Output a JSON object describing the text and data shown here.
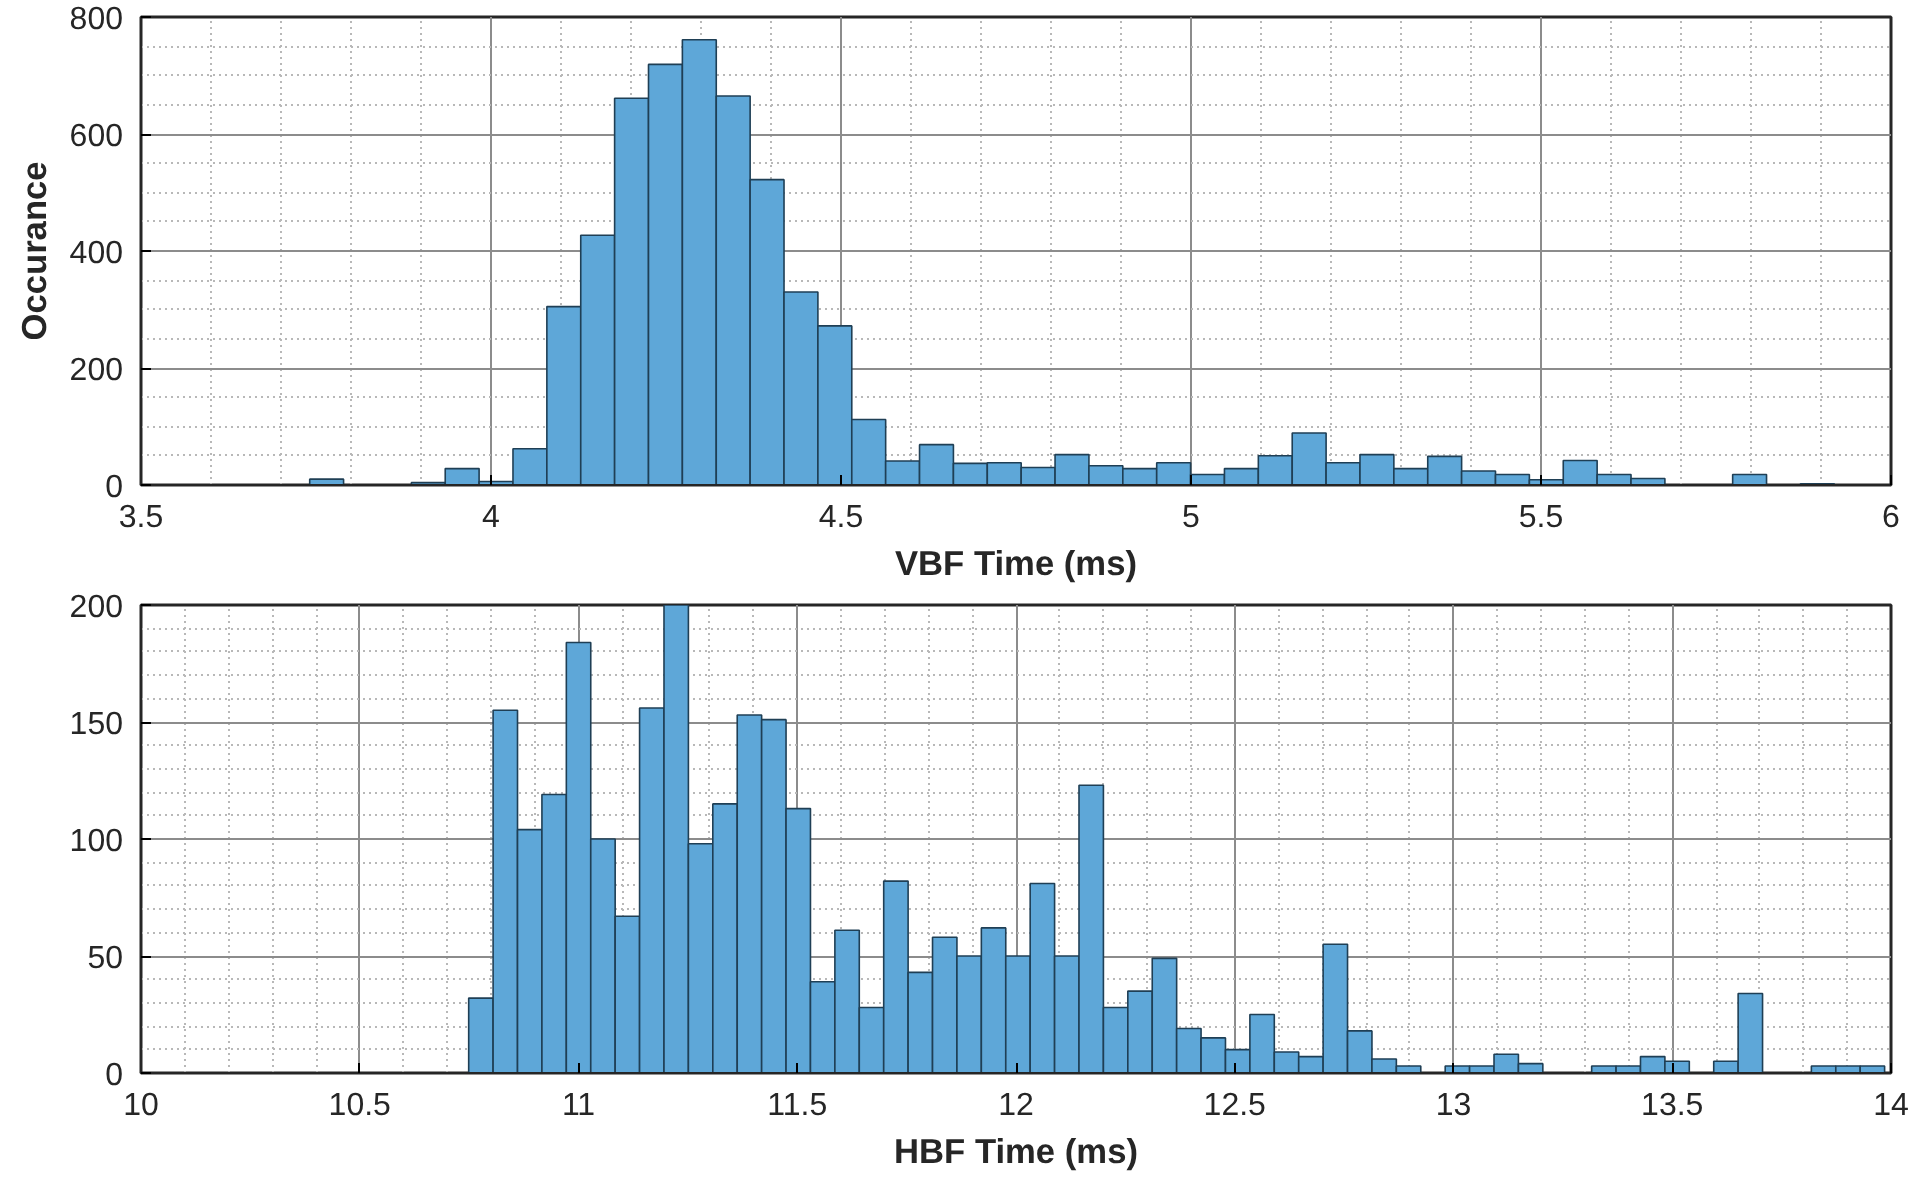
{
  "chart_data": [
    {
      "type": "histogram",
      "xlabel": "VBF Time (ms)",
      "ylabel": "Occurance",
      "color": "#5ea7d8",
      "bins": [
        3.741,
        3.7894,
        3.8378,
        3.8862,
        3.9346,
        3.983,
        4.0314,
        4.0798,
        4.1282,
        4.1766,
        4.225,
        4.2734,
        4.3218,
        4.3702,
        4.4186,
        4.467,
        4.5154,
        4.5638,
        4.6122,
        4.6606,
        4.709,
        4.7574,
        4.8058,
        4.8542,
        4.9026,
        4.951,
        4.9994,
        5.0478,
        5.0962,
        5.1446,
        5.193,
        5.2414,
        5.2898,
        5.3382,
        5.3866,
        5.435,
        5.4834,
        5.5318,
        5.5802,
        5.6286,
        5.677,
        5.7254,
        5.7738,
        5.8222,
        5.8706,
        5.919
      ],
      "values": [
        10,
        0,
        0,
        4,
        28,
        6,
        62,
        305,
        427,
        661,
        719,
        761,
        665,
        522,
        330,
        272,
        112,
        41,
        69,
        37,
        38,
        30,
        52,
        33,
        28,
        38,
        18,
        28,
        50,
        89,
        38,
        52,
        28,
        49,
        24,
        18,
        9,
        42,
        18,
        11,
        0,
        0,
        18,
        0,
        2
      ],
      "xlim": [
        3.5,
        6
      ],
      "xticks": [
        3.5,
        4,
        4.5,
        5,
        5.5,
        6
      ],
      "ylim": [
        0,
        800
      ],
      "yticks": [
        0,
        200,
        400,
        600,
        800
      ],
      "grid": true
    },
    {
      "type": "histogram",
      "xlabel": "HBF Time (ms)",
      "color": "#5ea7d8",
      "bins": [
        10.749,
        10.8048,
        10.8606,
        10.9164,
        10.9722,
        11.028,
        11.0838,
        11.1396,
        11.1954,
        11.2512,
        11.307,
        11.3628,
        11.4186,
        11.4744,
        11.5302,
        11.586,
        11.6418,
        11.6976,
        11.7534,
        11.8092,
        11.865,
        11.9208,
        11.9766,
        12.0324,
        12.0882,
        12.144,
        12.1998,
        12.2556,
        12.3114,
        12.3672,
        12.423,
        12.4788,
        12.5346,
        12.5904,
        12.6462,
        12.702,
        12.7578,
        12.8136,
        12.8694,
        12.9252,
        12.981,
        13.0368,
        13.0926,
        13.1484,
        13.2042,
        13.26,
        13.3158,
        13.3716,
        13.4274,
        13.4832,
        13.539,
        13.5948,
        13.6506,
        13.7064,
        13.7622,
        13.818,
        13.8738,
        13.9296,
        13.9854
      ],
      "values": [
        32,
        155,
        104,
        119,
        184,
        100,
        67,
        156,
        200,
        98,
        115,
        153,
        151,
        113,
        39,
        61,
        28,
        82,
        43,
        58,
        50,
        62,
        50,
        81,
        50,
        123,
        28,
        35,
        49,
        19,
        15,
        10,
        25,
        9,
        7,
        55,
        18,
        6,
        3,
        0,
        3,
        3,
        8,
        4,
        0,
        0,
        3,
        3,
        7,
        5,
        0,
        5,
        34,
        0,
        0,
        3,
        3,
        3
      ],
      "xlim": [
        10,
        14
      ],
      "xticks": [
        10,
        10.5,
        11,
        11.5,
        12,
        12.5,
        13,
        13.5,
        14
      ],
      "ylim": [
        0,
        200
      ],
      "yticks": [
        0,
        50,
        100,
        150,
        200
      ],
      "grid": true
    }
  ]
}
